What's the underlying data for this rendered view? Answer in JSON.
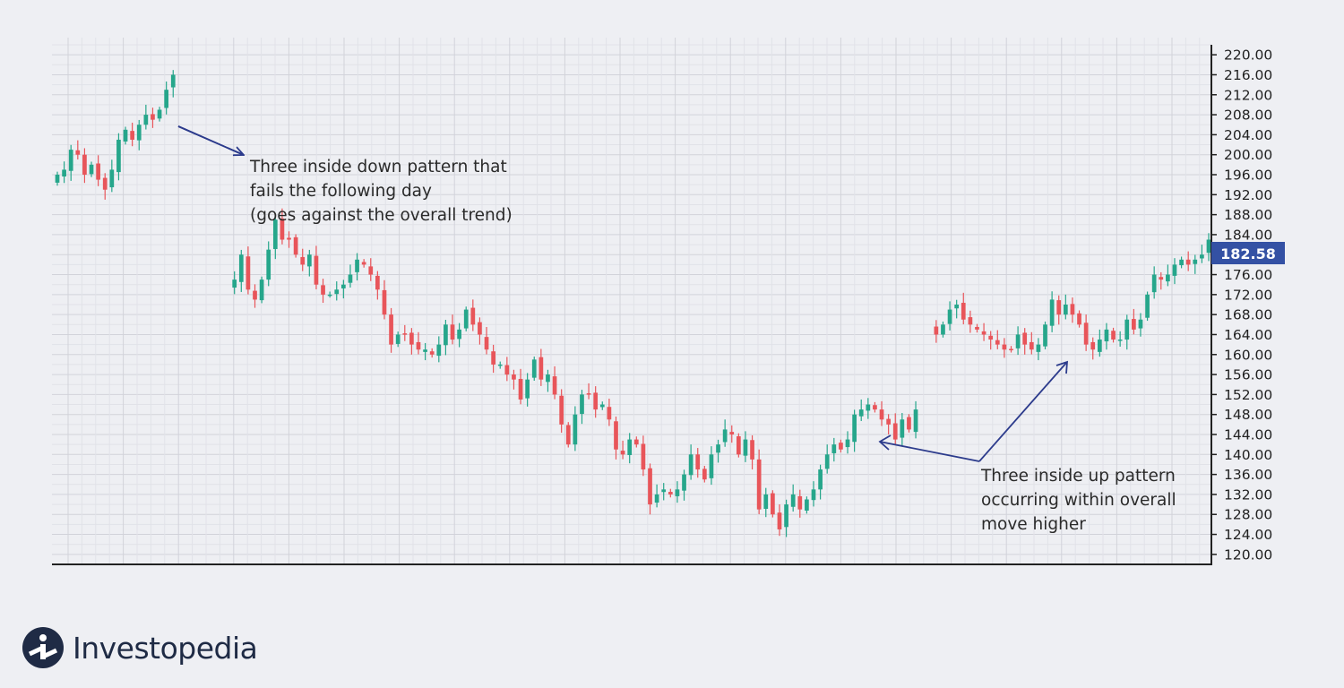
{
  "chart_data": {
    "type": "candlestick",
    "ylim": [
      118,
      222
    ],
    "y_ticks": [
      220,
      216,
      212,
      208,
      204,
      200,
      196,
      192,
      188,
      184,
      180,
      176,
      172,
      168,
      164,
      160,
      156,
      152,
      148,
      144,
      140,
      136,
      132,
      128,
      124,
      120
    ],
    "y_tick_labels": [
      "220.00",
      "216.00",
      "212.00",
      "208.00",
      "204.00",
      "200.00",
      "196.00",
      "192.00",
      "188.00",
      "184.00",
      "180.00",
      "176.00",
      "172.00",
      "168.00",
      "164.00",
      "160.00",
      "156.00",
      "152.00",
      "148.00",
      "144.00",
      "140.00",
      "136.00",
      "132.00",
      "128.00",
      "124.00",
      "120.00"
    ],
    "last_price": 182.58,
    "last_price_label": "182.58",
    "grid": true,
    "up_color": "#26a68b",
    "down_color": "#e8555a",
    "closes": [
      196,
      197,
      201,
      200,
      196,
      198,
      195,
      193,
      197,
      203,
      205,
      203,
      206,
      208,
      207,
      209,
      213,
      216,
      null,
      null,
      null,
      null,
      null,
      null,
      null,
      null,
      175,
      180,
      173,
      171,
      175,
      181,
      187,
      183,
      183,
      180,
      178,
      180,
      174,
      172,
      172,
      173,
      174,
      176,
      179,
      178,
      176,
      173,
      168,
      162,
      164,
      164,
      162,
      161,
      161,
      160,
      162,
      166,
      163,
      165,
      169,
      166,
      164,
      161,
      158,
      158,
      156,
      155,
      151,
      155,
      159,
      155,
      156,
      152,
      146,
      142,
      148,
      152,
      152,
      149,
      150,
      147,
      141,
      140,
      143,
      142,
      137,
      130,
      132,
      133,
      132,
      133,
      136,
      140,
      137,
      135,
      140,
      142,
      145,
      144,
      140,
      143,
      139,
      129,
      132,
      128,
      125,
      130,
      132,
      129,
      131,
      133,
      137,
      140,
      142,
      141,
      143,
      148,
      149,
      150,
      149,
      147,
      146,
      143,
      147,
      145,
      149,
      null,
      null,
      164,
      166,
      169,
      170,
      167,
      166,
      165,
      164,
      163,
      162,
      161,
      161,
      164,
      162,
      161,
      162,
      166,
      171,
      168,
      170,
      168,
      166,
      162,
      161,
      163,
      165,
      163,
      163,
      167,
      165,
      167,
      172,
      176,
      175,
      176,
      178,
      179,
      178,
      179,
      180,
      183
    ],
    "annotations": [
      {
        "lines": [
          "Three inside down pattern that",
          "fails the following day",
          "(goes against the overall trend)"
        ]
      },
      {
        "lines": [
          "Three inside up pattern",
          "occurring within overall",
          "move higher"
        ]
      }
    ]
  },
  "brand": {
    "name": "Investopedia",
    "logo_icon": "investopedia-logo-icon",
    "primary_color": "#1f2b45",
    "arrow_color": "#2c3b8c",
    "price_tag_color": "#3451a4"
  }
}
